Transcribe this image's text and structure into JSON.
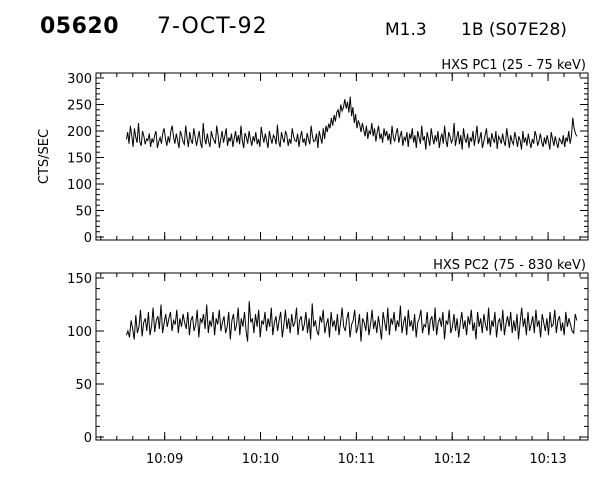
{
  "header": {
    "event_id": "05620",
    "date": "7-OCT-92",
    "flare_class": "M1.3",
    "location": "1B (S07E28)"
  },
  "chart_data": [
    {
      "type": "line",
      "title": "HXS PC1 (25 - 75 keV)",
      "ylabel": "CTS/SEC",
      "xlabel": "",
      "x_start": "10:08:36",
      "x_end": "10:13:18",
      "xlim": [
        "10:08:17",
        "10:13:25"
      ],
      "xticks": [
        "10:09",
        "10:10",
        "10:11",
        "10:12",
        "10:13"
      ],
      "ylim": [
        0,
        300
      ],
      "yticks": [
        0,
        50,
        100,
        150,
        200,
        250,
        300
      ],
      "grid": false,
      "values": [
        184,
        198,
        176,
        210,
        192,
        170,
        205,
        188,
        178,
        215,
        180,
        172,
        200,
        190,
        175,
        185,
        182,
        195,
        170,
        186,
        178,
        192,
        200,
        168,
        180,
        188,
        176,
        196,
        205,
        185,
        172,
        190,
        178,
        200,
        210,
        188,
        176,
        195,
        182,
        168,
        200,
        192,
        180,
        175,
        210,
        188,
        170,
        198,
        182,
        176,
        205,
        190,
        172,
        185,
        200,
        178,
        168,
        215,
        186,
        175,
        195,
        180,
        170,
        200,
        188,
        182,
        176,
        210,
        192,
        168,
        185,
        200,
        178,
        190,
        205,
        172,
        188,
        180,
        195,
        170,
        186,
        200,
        178,
        192,
        175,
        210,
        182,
        168,
        196,
        188,
        176,
        200,
        185,
        172,
        190,
        180,
        198,
        175,
        185,
        170,
        208,
        190,
        178,
        195,
        182,
        168,
        200,
        186,
        176,
        192,
        188,
        175,
        212,
        180,
        170,
        198,
        186,
        178,
        200,
        192,
        172,
        185,
        176,
        205,
        190,
        182,
        180,
        195,
        170,
        188,
        200,
        178,
        186,
        172,
        196,
        185,
        175,
        210,
        190,
        180,
        182,
        195,
        168,
        200,
        188,
        176,
        205,
        185,
        210,
        198,
        214,
        205,
        225,
        210,
        230,
        218,
        235,
        240,
        225,
        250,
        238,
        245,
        260,
        242,
        255,
        235,
        265,
        228,
        245,
        215,
        232,
        205,
        220,
        212,
        198,
        215,
        202,
        190,
        210,
        185,
        200,
        195,
        215,
        190,
        205,
        180,
        198,
        210,
        185,
        195,
        178,
        205,
        190,
        200,
        182,
        195,
        175,
        210,
        188,
        180,
        196,
        205,
        178,
        190,
        200,
        172,
        188,
        182,
        198,
        170,
        195,
        185,
        205,
        178,
        192,
        168,
        200,
        188,
        176,
        210,
        182,
        190,
        165,
        198,
        185,
        172,
        205,
        188,
        175,
        192,
        180,
        200,
        168,
        186,
        195,
        176,
        210,
        182,
        170,
        198,
        190,
        178,
        184,
        215,
        172,
        188,
        200,
        175,
        192,
        165,
        205,
        185,
        178,
        195,
        168,
        188,
        180,
        200,
        172,
        190,
        210,
        176,
        185,
        198,
        168,
        180,
        192,
        205,
        175,
        188,
        170,
        196,
        184,
        178,
        200,
        166,
        190,
        185,
        176,
        195,
        180,
        172,
        205,
        188,
        168,
        192,
        180,
        175,
        198,
        186,
        170,
        190,
        182,
        165,
        200,
        178,
        188,
        172,
        195,
        180,
        168,
        185,
        176,
        200,
        190,
        172,
        182,
        195,
        178,
        170,
        188,
        175,
        192,
        180,
        165,
        198,
        185,
        172,
        190,
        178,
        168,
        186,
        182,
        175,
        192,
        170,
        188,
        180,
        200,
        176,
        190,
        225,
        205,
        195,
        190
      ]
    },
    {
      "type": "line",
      "title": "HXS PC2 (75 - 830 keV)",
      "ylabel": "",
      "xlabel": "",
      "x_start": "10:08:36",
      "x_end": "10:13:18",
      "xlim": [
        "10:08:17",
        "10:13:25"
      ],
      "xticks": [
        "10:09",
        "10:10",
        "10:11",
        "10:12",
        "10:13"
      ],
      "ylim": [
        0,
        150
      ],
      "yticks": [
        0,
        50,
        100,
        150
      ],
      "grid": false,
      "values": [
        96,
        100,
        94,
        110,
        102,
        92,
        115,
        98,
        104,
        120,
        95,
        108,
        112,
        100,
        118,
        96,
        105,
        122,
        99,
        110,
        114,
        102,
        125,
        98,
        108,
        116,
        104,
        112,
        118,
        100,
        110,
        106,
        120,
        98,
        112,
        104,
        116,
        108,
        102,
        118,
        96,
        110,
        114,
        100,
        106,
        120,
        94,
        112,
        108,
        116,
        102,
        125,
        98,
        110,
        104,
        118,
        96,
        112,
        106,
        120,
        100,
        108,
        114,
        98,
        104,
        118,
        92,
        110,
        116,
        100,
        106,
        122,
        96,
        112,
        104,
        118,
        100,
        90,
        128,
        108,
        112,
        98,
        116,
        104,
        120,
        94,
        110,
        106,
        118,
        100,
        112,
        104,
        122,
        96,
        108,
        114,
        100,
        110,
        118,
        94,
        106,
        120,
        102,
        112,
        98,
        116,
        104,
        108,
        122,
        96,
        110,
        114,
        100,
        106,
        118,
        98,
        112,
        92,
        126,
        104,
        110,
        100,
        96,
        114,
        108,
        120,
        98,
        106,
        112,
        94,
        118,
        104,
        110,
        100,
        116,
        96,
        108,
        122,
        104,
        100,
        112,
        118,
        94,
        106,
        110,
        120,
        98,
        104,
        116,
        90,
        112,
        108,
        100,
        118,
        96,
        106,
        120,
        102,
        110,
        98,
        114,
        104,
        92,
        118,
        108,
        100,
        122,
        96,
        112,
        106,
        118,
        100,
        110,
        104,
        124,
        98,
        108,
        114,
        96,
        120,
        104,
        110,
        100,
        116,
        94,
        108,
        112,
        120,
        98,
        106,
        104,
        118,
        96,
        110,
        114,
        100,
        122,
        96,
        108,
        112,
        104,
        118,
        92,
        110,
        106,
        120,
        98,
        104,
        116,
        100,
        112,
        94,
        108,
        118,
        102,
        110,
        96,
        114,
        106,
        120,
        100,
        108,
        92,
        118,
        104,
        112,
        98,
        116,
        106,
        100,
        122,
        96,
        110,
        104,
        118,
        94,
        108,
        112,
        100,
        120,
        96,
        106,
        114,
        104,
        118,
        98,
        110,
        100,
        116,
        92,
        108,
        122,
        104,
        112,
        96,
        118,
        100,
        106,
        114,
        98,
        120,
        104,
        110,
        94,
        116,
        108,
        100,
        112,
        96,
        118,
        104,
        106,
        120,
        98,
        110,
        114,
        100,
        108,
        96,
        118,
        104,
        112,
        106,
        100,
        98,
        116,
        110
      ]
    }
  ]
}
